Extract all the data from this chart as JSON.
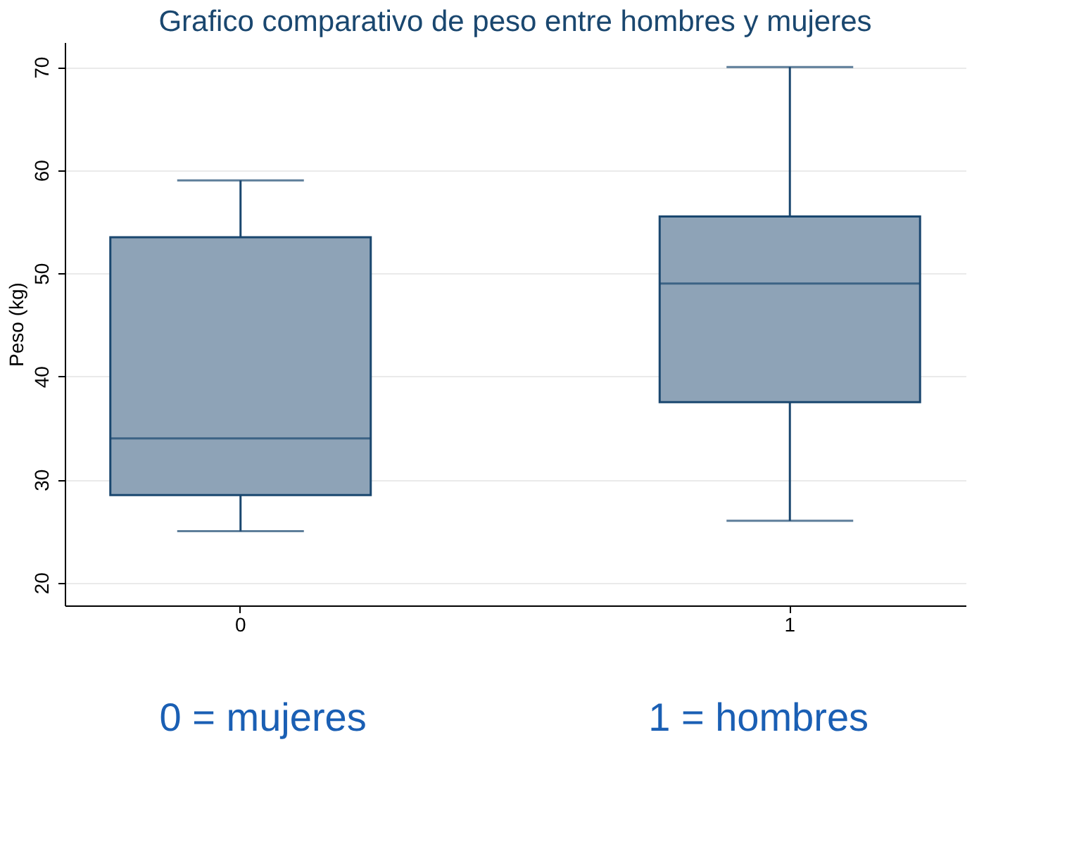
{
  "chart_data": {
    "type": "box",
    "title": "Grafico comparativo de peso entre hombres y mujeres",
    "ylabel": "Peso (kg)",
    "categories": [
      "0",
      "1"
    ],
    "series": [
      {
        "color": "#8ea3b7",
        "boxes": [
          {
            "low": 25,
            "q1": 28.5,
            "median": 34,
            "q3": 53.5,
            "high": 59
          },
          {
            "low": 26,
            "q1": 37.5,
            "median": 49,
            "q3": 55.5,
            "high": 70
          }
        ]
      }
    ],
    "ylim": [
      17.8,
      72.4
    ],
    "yticks": [
      20,
      30,
      40,
      50,
      60,
      70
    ],
    "grid": "y",
    "annotations": [
      "0 = mujeres",
      "1 = hombres"
    ]
  }
}
